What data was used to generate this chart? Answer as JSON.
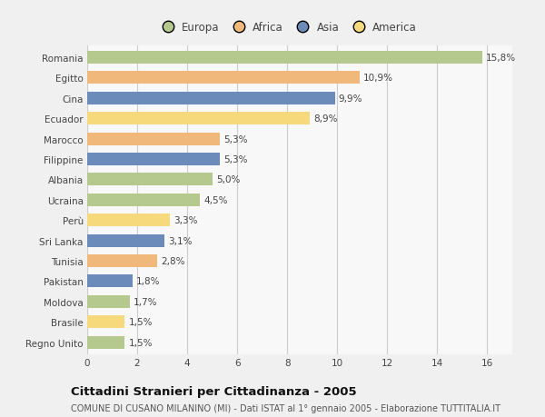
{
  "categories": [
    "Romania",
    "Egitto",
    "Cina",
    "Ecuador",
    "Marocco",
    "Filippine",
    "Albania",
    "Ucraina",
    "Perù",
    "Sri Lanka",
    "Tunisia",
    "Pakistan",
    "Moldova",
    "Brasile",
    "Regno Unito"
  ],
  "values": [
    15.8,
    10.9,
    9.9,
    8.9,
    5.3,
    5.3,
    5.0,
    4.5,
    3.3,
    3.1,
    2.8,
    1.8,
    1.7,
    1.5,
    1.5
  ],
  "labels": [
    "15,8%",
    "10,9%",
    "9,9%",
    "8,9%",
    "5,3%",
    "5,3%",
    "5,0%",
    "4,5%",
    "3,3%",
    "3,1%",
    "2,8%",
    "1,8%",
    "1,7%",
    "1,5%",
    "1,5%"
  ],
  "colors": [
    "#b5c98e",
    "#f0b87a",
    "#6b8cba",
    "#f5d97a",
    "#f0b87a",
    "#6b8cba",
    "#b5c98e",
    "#b5c98e",
    "#f5d97a",
    "#6b8cba",
    "#f0b87a",
    "#6b8cba",
    "#b5c98e",
    "#f5d97a",
    "#b5c98e"
  ],
  "legend_labels": [
    "Europa",
    "Africa",
    "Asia",
    "America"
  ],
  "legend_colors": [
    "#b5c98e",
    "#f0b87a",
    "#6b8cba",
    "#f5d97a"
  ],
  "title": "Cittadini Stranieri per Cittadinanza - 2005",
  "subtitle": "COMUNE DI CUSANO MILANINO (MI) - Dati ISTAT al 1° gennaio 2005 - Elaborazione TUTTITALIA.IT",
  "xlim": [
    0,
    17
  ],
  "xticks": [
    0,
    2,
    4,
    6,
    8,
    10,
    12,
    14,
    16
  ],
  "background_color": "#f0f0f0",
  "plot_bg_color": "#f8f8f8",
  "grid_color": "#cccccc",
  "label_fontsize": 7.5,
  "tick_fontsize": 7.5,
  "title_fontsize": 9.5,
  "subtitle_fontsize": 7.0,
  "bar_height": 0.62
}
